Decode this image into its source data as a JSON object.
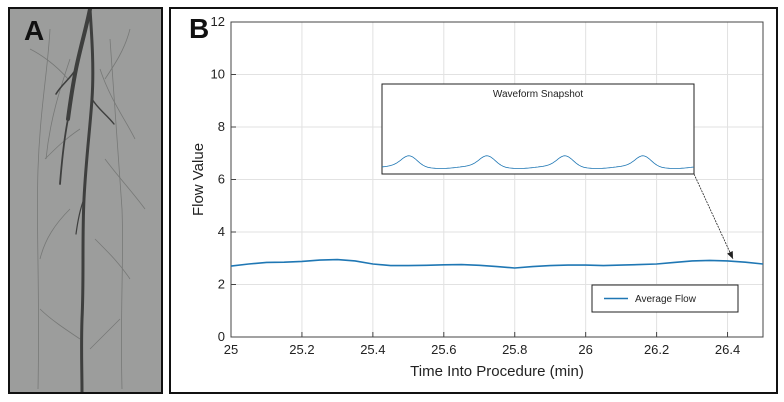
{
  "panels": {
    "a_label": "A",
    "b_label": "B"
  },
  "colors": {
    "series": "#1f77b4",
    "angiogram_bg": "#9c9d9c",
    "vessel": "#3e3f3e"
  },
  "chart_data": {
    "type": "line",
    "xlabel": "Time Into Procedure (min)",
    "ylabel": "Flow Value",
    "xlim": [
      25,
      26.5
    ],
    "ylim": [
      0,
      12
    ],
    "xticks": [
      25,
      25.2,
      25.4,
      25.6,
      25.8,
      26,
      26.2,
      26.4
    ],
    "xtick_labels": [
      "25",
      "25.2",
      "25.4",
      "25.6",
      "25.8",
      "26",
      "26.2",
      "26.4"
    ],
    "yticks": [
      0,
      2,
      4,
      6,
      8,
      10,
      12
    ],
    "ytick_labels": [
      "0",
      "2",
      "4",
      "6",
      "8",
      "10",
      "12"
    ],
    "grid": true,
    "legend_position": "lower-right",
    "series": [
      {
        "name": "Average Flow",
        "x": [
          25.0,
          25.05,
          25.1,
          25.15,
          25.2,
          25.25,
          25.3,
          25.35,
          25.4,
          25.45,
          25.5,
          25.55,
          25.6,
          25.65,
          25.7,
          25.75,
          25.8,
          25.85,
          25.9,
          25.95,
          26.0,
          26.05,
          26.1,
          26.15,
          26.2,
          26.25,
          26.3,
          26.35,
          26.4,
          26.45,
          26.5
        ],
        "y": [
          2.7,
          2.78,
          2.84,
          2.85,
          2.88,
          2.93,
          2.95,
          2.9,
          2.78,
          2.72,
          2.72,
          2.73,
          2.75,
          2.76,
          2.73,
          2.68,
          2.63,
          2.68,
          2.72,
          2.74,
          2.74,
          2.72,
          2.74,
          2.76,
          2.78,
          2.84,
          2.9,
          2.92,
          2.9,
          2.85,
          2.78
        ]
      }
    ],
    "inset": {
      "title": "Waveform Snapshot",
      "pulse_count": 4
    }
  }
}
